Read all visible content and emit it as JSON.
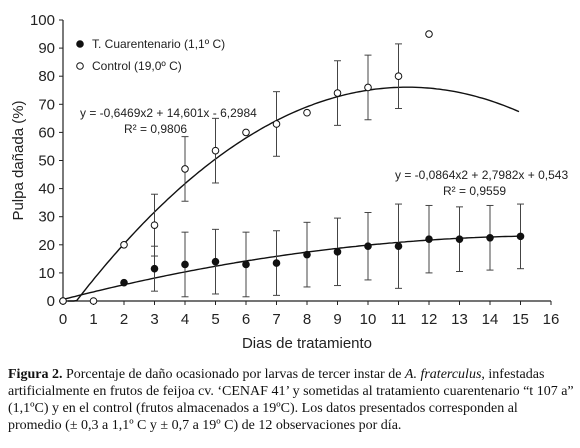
{
  "chart_data": {
    "type": "scatter",
    "xlabel": "Dias de tratamiento",
    "ylabel": "Pulpa dañada (%)",
    "xlim": [
      0,
      16
    ],
    "ylim": [
      0,
      100
    ],
    "xticks": [
      0,
      1,
      2,
      3,
      4,
      5,
      6,
      7,
      8,
      9,
      10,
      11,
      12,
      13,
      14,
      15,
      16
    ],
    "yticks": [
      0,
      10,
      20,
      30,
      40,
      50,
      60,
      70,
      80,
      90,
      100
    ],
    "grid": false,
    "legend_position": "top-left",
    "series": [
      {
        "name": "T. Cuarentenario (1,1º C)",
        "marker": "filled-circle",
        "color": "#111111",
        "x": [
          0,
          2,
          3,
          4,
          5,
          6,
          7,
          8,
          9,
          10,
          11,
          12,
          13,
          14,
          15
        ],
        "y": [
          0,
          6.5,
          11.5,
          13,
          14,
          13,
          13.5,
          16.5,
          17.5,
          19.5,
          19.5,
          22,
          22,
          22.5,
          23
        ],
        "error": [
          0,
          0,
          8,
          11.5,
          11.5,
          11.5,
          11.5,
          11.5,
          12,
          12,
          15,
          12,
          11.5,
          11.5,
          11.5
        ],
        "fit": {
          "a": -0.0864,
          "b": 2.7982,
          "c": 0.543
        },
        "equation": "y = -0,0864x2 + 2,7982x + 0,543",
        "r2": "R² = 0,9559"
      },
      {
        "name": "Control (19,0º C)",
        "marker": "open-circle",
        "color": "#111111",
        "x": [
          0,
          1,
          2,
          3,
          4,
          5,
          6,
          7,
          8,
          9,
          10,
          11,
          12
        ],
        "y": [
          0,
          0,
          20,
          27,
          47,
          53.5,
          60,
          63,
          67,
          74,
          76,
          80,
          95
        ],
        "error": [
          0,
          0,
          0,
          11,
          11.5,
          11.5,
          0,
          11.5,
          0,
          11.5,
          11.5,
          11.5,
          0
        ],
        "fit": {
          "a": -0.6469,
          "b": 14.601,
          "c": -6.2984
        },
        "equation": "y = -0,6469x2 + 14,601x - 6,2984",
        "r2": "R² = 0,9806"
      }
    ]
  },
  "caption": {
    "label": "Figura 2.",
    "text_1": " Porcentaje de daño ocasionado por larvas de tercer instar de ",
    "species": "A. fraterculus",
    "text_2": ", infestadas artificialmente en frutos de feijoa cv. ‘CENAF 41’ y sometidas al tratamiento cuarentenario “t 107 a” (1,1ºC) y en el control (frutos almacenados a 19ºC). Los datos presentados corresponden al promedio (± 0,3 a 1,1º C  y ± 0,7 a 19º C) de 12 observaciones por día."
  }
}
